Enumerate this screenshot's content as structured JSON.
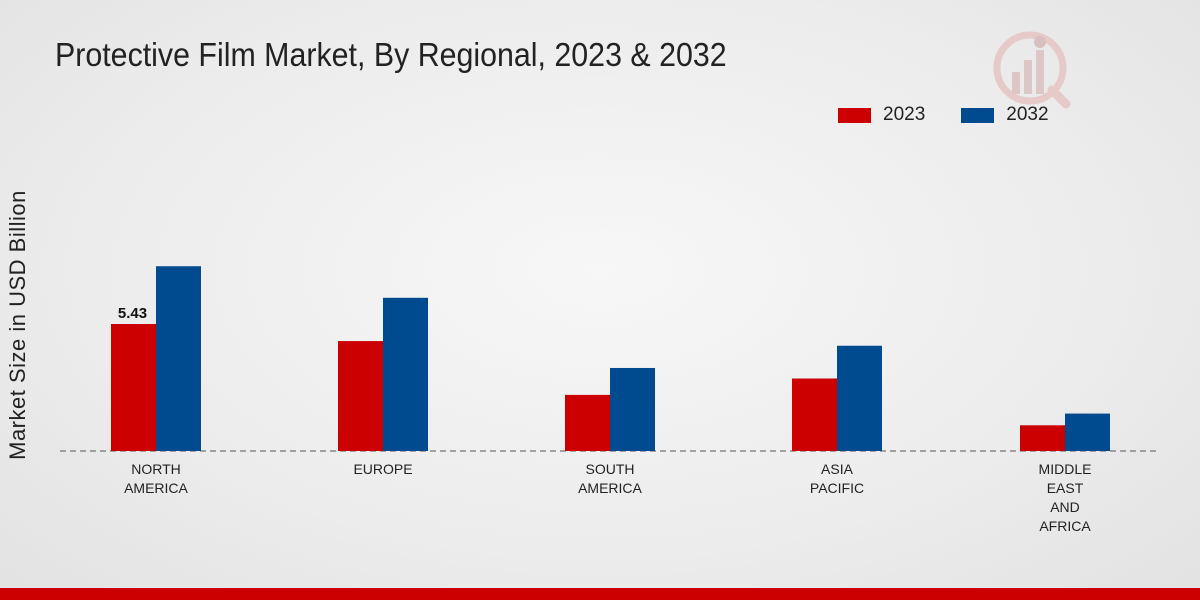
{
  "chart_data": {
    "type": "bar",
    "title": "Protective Film Market, By Regional, 2023 & 2032",
    "xlabel": "",
    "ylabel": "Market Size in USD Billion",
    "ylim": [
      0,
      18
    ],
    "categories": [
      [
        "NORTH",
        "AMERICA"
      ],
      [
        "EUROPE"
      ],
      [
        "SOUTH",
        "AMERICA"
      ],
      [
        "ASIA",
        "PACIFIC"
      ],
      [
        "MIDDLE",
        "EAST",
        "AND",
        "AFRICA"
      ]
    ],
    "series": [
      {
        "name": "2023",
        "color": "#cc0000",
        "values": [
          5.43,
          4.7,
          2.4,
          3.1,
          1.1
        ]
      },
      {
        "name": "2032",
        "color": "#004a8f",
        "values": [
          7.9,
          6.55,
          3.55,
          4.5,
          1.6
        ]
      }
    ],
    "data_labels": [
      {
        "series": 0,
        "category": 0,
        "text": "5.43"
      }
    ],
    "legend_position": "top-right"
  },
  "colors": {
    "accent_bar": "#cc0000"
  },
  "icons": {
    "watermark": "logo-watermark-icon"
  }
}
